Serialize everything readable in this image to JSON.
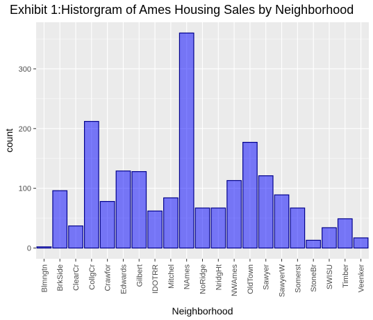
{
  "chart_data": {
    "type": "bar",
    "title": "Exhibit 1:Historgram of Ames Housing Sales by Neighborhood",
    "xlabel": "Neighborhood",
    "ylabel": "count",
    "categories": [
      "Blmngtn",
      "BrkSide",
      "ClearCr",
      "CollgCr",
      "Crawfor",
      "Edwards",
      "Gilbert",
      "IDOTRR",
      "Mitchel",
      "NAmes",
      "NoRidge",
      "NridgHt",
      "NWAmes",
      "OldTown",
      "Sawyer",
      "SawyerW",
      "Somerst",
      "StoneBr",
      "SWISU",
      "Timber",
      "Veenker"
    ],
    "values": [
      2,
      96,
      37,
      212,
      78,
      129,
      128,
      62,
      84,
      360,
      67,
      67,
      113,
      177,
      121,
      89,
      67,
      13,
      34,
      49,
      17
    ],
    "yticks": [
      0,
      100,
      200,
      300
    ],
    "ylim": [
      -18,
      378
    ],
    "grid": true,
    "colors": {
      "bar_fill": "#0000ff",
      "bar_fill_opacity": 0.5,
      "bar_stroke": "#00008b",
      "panel_bg": "#ebebeb",
      "grid_major": "#ffffff"
    }
  }
}
